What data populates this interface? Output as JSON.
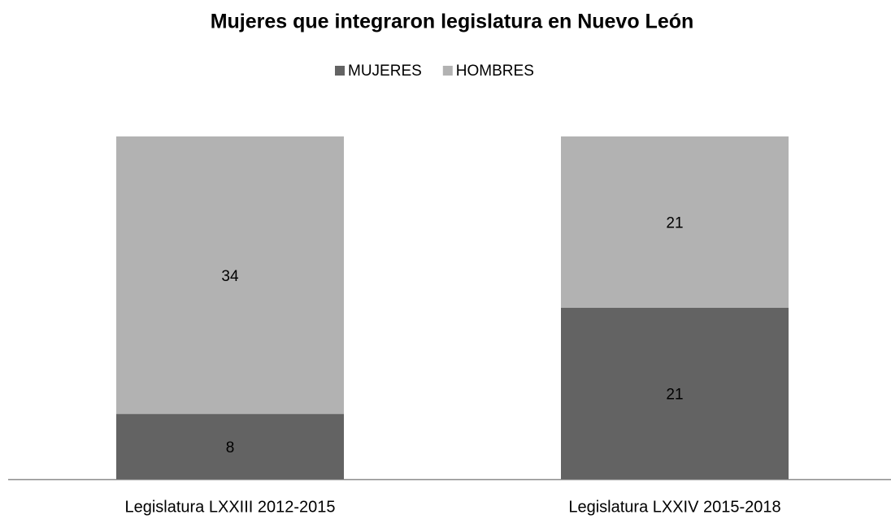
{
  "chart_data": {
    "type": "stacked_bar",
    "title": "Mujeres que integraron legislatura en Nuevo León",
    "categories": [
      "Legislatura LXXIII 2012-2015",
      "Legislatura LXXIV 2015-2018"
    ],
    "series": [
      {
        "name": "MUJERES",
        "color": "#636363",
        "values": [
          8,
          21
        ]
      },
      {
        "name": "HOMBRES",
        "color": "#b2b2b2",
        "values": [
          34,
          21
        ]
      }
    ],
    "legend": "top"
  }
}
